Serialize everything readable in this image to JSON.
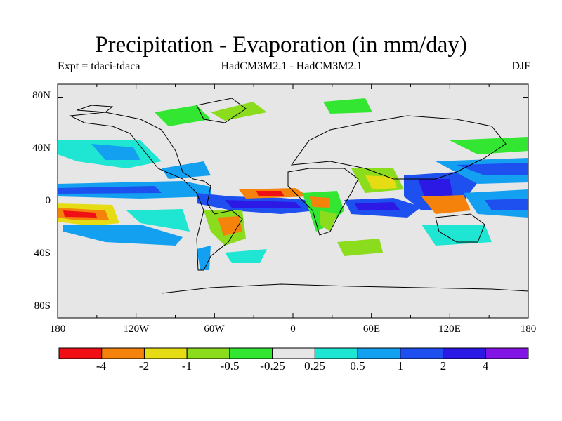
{
  "figure": {
    "title": "Precipitation - Evaporation (in mm/day)",
    "subtitle_left": "Expt = tdaci-tdaca",
    "subtitle_center": "HadCM3M2.1 - HadCM3M2.1",
    "subtitle_right": "DJF"
  },
  "map": {
    "lat_ticks": [
      "80N",
      "40N",
      "0",
      "40S",
      "80S"
    ],
    "lon_ticks": [
      "180",
      "120W",
      "60W",
      "0",
      "60E",
      "120E",
      "180"
    ],
    "background_color": "#e6e6e6"
  },
  "colorbar": {
    "colors": [
      "#f00f14",
      "#f5820a",
      "#e6dc14",
      "#8cdc1e",
      "#32e632",
      "#e6e6e6",
      "#1ee6d2",
      "#14a0f0",
      "#1e50f0",
      "#2d19e6",
      "#8214e6"
    ],
    "labels": [
      "-4",
      "-2",
      "-1",
      "-0.5",
      "-0.25",
      "0.25",
      "0.5",
      "1",
      "2",
      "4"
    ]
  }
}
